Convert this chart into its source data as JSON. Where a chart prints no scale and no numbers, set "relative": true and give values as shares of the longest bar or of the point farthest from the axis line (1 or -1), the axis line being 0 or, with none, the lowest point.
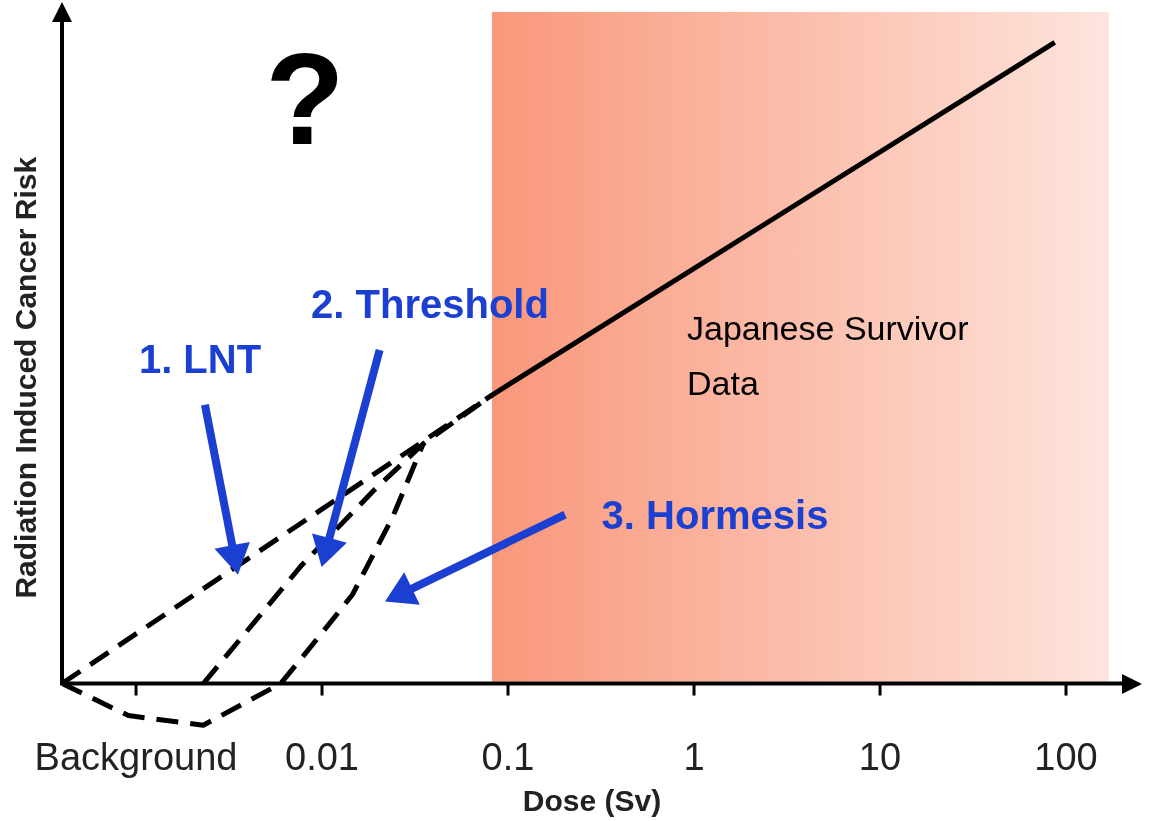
{
  "chart_data": {
    "type": "line",
    "xlabel": "Dose (Sv)",
    "ylabel": "Radiation Induced Cancer Risk",
    "relative": true,
    "log": "x",
    "xlim": [
      0.0004,
      200
    ],
    "xticks": [
      {
        "value": 0.001,
        "label": "Background"
      },
      0.01,
      0.1,
      1,
      10,
      100
    ],
    "series": [
      {
        "color": "#000000",
        "line_style": "dashed",
        "x": [
          0.0004,
          0.082
        ],
        "values": [
          0,
          0.45
        ]
      },
      {
        "color": "#000000",
        "line_style": "dashed",
        "x": [
          0.0023,
          0.0078,
          0.0188,
          0.035,
          0.082
        ],
        "values": [
          0,
          0.185,
          0.3,
          0.374,
          0.45
        ]
      },
      {
        "color": "#000000",
        "line_style": "dashed",
        "x": [
          0.0004,
          0.00091,
          0.0023,
          0.006,
          0.01,
          0.0146,
          0.024,
          0.035
        ],
        "values": [
          0,
          -0.05,
          -0.065,
          0,
          0.079,
          0.139,
          0.26,
          0.374
        ]
      },
      {
        "color": "#000000",
        "line_style": "solid",
        "x": [
          0.082,
          87
        ],
        "values": [
          0.45,
          1
        ]
      }
    ],
    "bands": [
      {
        "axis": "x",
        "from": 0.082,
        "to": 170,
        "label": "Japanese Survivor Data",
        "color": "#f9977a"
      }
    ],
    "annotations": [
      "?",
      "1. LNT",
      "2. Threshold",
      "3. Hormesis"
    ],
    "legend": false,
    "grid": false
  }
}
